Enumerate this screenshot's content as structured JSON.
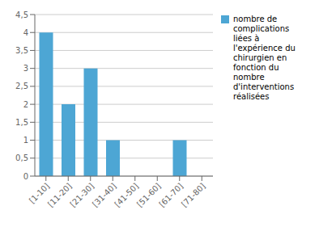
{
  "chart_data": {
    "type": "bar",
    "categories": [
      "[1-10]",
      "[11-20]",
      "[21-30]",
      "[31-40]",
      "[41-50]",
      "[51-60]",
      "[61-70]",
      "[71-80]"
    ],
    "series": [
      {
        "name": "nombre de\ncomplications\nliées à\nl'expérience du\nchirurgien en\nfonction du\nnombre\nd'interventions\nréalisées",
        "color": "#4DA6D4",
        "values": [
          4,
          2,
          3,
          1,
          0,
          0,
          1,
          0
        ]
      }
    ],
    "ylim": [
      0,
      4.5
    ],
    "yticks": [
      0,
      {
        "value": 0.5,
        "label": "0,5"
      },
      1,
      {
        "value": 1.5,
        "label": "1,5"
      },
      2,
      {
        "value": 2.5,
        "label": "2,5"
      },
      3,
      {
        "value": 3.5,
        "label": "3,5"
      },
      4,
      {
        "value": 4.5,
        "label": "4,5"
      }
    ],
    "grid": true,
    "legend": "right"
  }
}
